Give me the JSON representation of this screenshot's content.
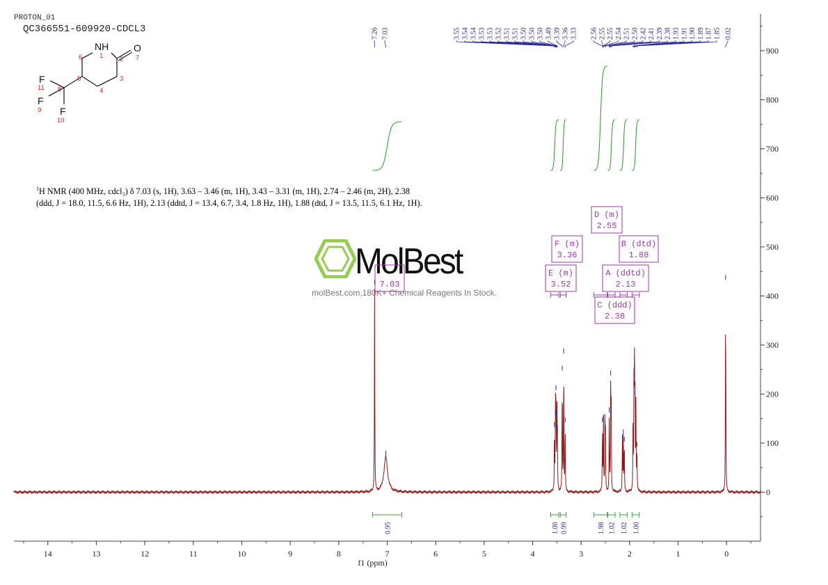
{
  "header": {
    "experiment": "PROTON_01",
    "sample": "QC366551-609920-CDCL3"
  },
  "molecule": {
    "atoms": [
      {
        "symbol": "NH",
        "number": "1"
      },
      {
        "symbol": "",
        "number": "2"
      },
      {
        "symbol": "",
        "number": "3"
      },
      {
        "symbol": "",
        "number": "4"
      },
      {
        "symbol": "",
        "number": "5"
      },
      {
        "symbol": "",
        "number": "6"
      },
      {
        "symbol": "O",
        "number": "7"
      },
      {
        "symbol": "",
        "number": "8"
      },
      {
        "symbol": "F",
        "number": "9"
      },
      {
        "symbol": "F",
        "number": "10"
      },
      {
        "symbol": "F",
        "number": "11"
      }
    ]
  },
  "description": {
    "nucleus_sup": "1",
    "text": "H NMR (400 MHz, cdcl₃) δ 7.03 (s, 1H), 3.63 – 3.46 (m, 1H), 3.43 – 3.31 (m, 1H), 2.74 – 2.46 (m, 2H), 2.38 (ddd, J = 18.0, 11.5, 6.6 Hz, 1H), 2.13 (ddtd, J = 13.4, 6.7, 3.4, 1.8 Hz, 1H), 1.88 (dtd, J = 13.5, 11.5, 6.1 Hz, 1H)."
  },
  "watermark": {
    "brand": "MolBest",
    "subtitle": "molBest.com,180K+ Chemical Reagents In Stock."
  },
  "colors": {
    "spectrum": "#8b1a1a",
    "integral": "#3aa03a",
    "multiplet": "#9b3aa8",
    "peak_label": "#2a2a9a",
    "axis": "#444444",
    "atom_number": "#d02020",
    "watermark_green": "#8cc63f"
  },
  "chart_data": {
    "type": "line",
    "xlabel": "f1 (ppm)",
    "xlim": [
      14.7,
      -0.7
    ],
    "ylim": [
      -100,
      975
    ],
    "x_ticks": [
      "14",
      "13",
      "12",
      "11",
      "10",
      "9",
      "8",
      "7",
      "6",
      "5",
      "4",
      "3",
      "2",
      "1",
      "0"
    ],
    "y_ticks": [
      "900",
      "800",
      "700",
      "600",
      "500",
      "400",
      "300",
      "200",
      "100",
      "0"
    ],
    "series": [
      {
        "values_peaks": [
          {
            "ppm": 7.26,
            "height": 420
          },
          {
            "ppm": 7.03,
            "height": 72
          },
          {
            "ppm": 3.55,
            "height": 130
          },
          {
            "ppm": 3.53,
            "height": 155
          },
          {
            "ppm": 3.52,
            "height": 205
          },
          {
            "ppm": 3.5,
            "height": 150
          },
          {
            "ppm": 3.49,
            "height": 125
          },
          {
            "ppm": 3.39,
            "height": 245
          },
          {
            "ppm": 3.36,
            "height": 280
          },
          {
            "ppm": 3.33,
            "height": 140
          },
          {
            "ppm": 2.56,
            "height": 140
          },
          {
            "ppm": 2.54,
            "height": 145
          },
          {
            "ppm": 2.51,
            "height": 135
          },
          {
            "ppm": 2.5,
            "height": 125
          },
          {
            "ppm": 2.42,
            "height": 160
          },
          {
            "ppm": 2.39,
            "height": 235
          },
          {
            "ppm": 2.38,
            "height": 155
          },
          {
            "ppm": 2.15,
            "height": 105
          },
          {
            "ppm": 2.13,
            "height": 115
          },
          {
            "ppm": 2.11,
            "height": 100
          },
          {
            "ppm": 1.93,
            "height": 120
          },
          {
            "ppm": 1.91,
            "height": 240
          },
          {
            "ppm": 1.9,
            "height": 215
          },
          {
            "ppm": 1.89,
            "height": 195
          },
          {
            "ppm": 1.87,
            "height": 175
          },
          {
            "ppm": 1.85,
            "height": 90
          },
          {
            "ppm": 0.02,
            "height": 430
          }
        ]
      }
    ],
    "peak_labels": [
      "7.26",
      "7.03",
      "3.55",
      "3.54",
      "3.54",
      "3.53",
      "3.53",
      "3.52",
      "3.51",
      "3.51",
      "3.50",
      "3.50",
      "3.50",
      "3.49",
      "3.39",
      "3.36",
      "3.33",
      "2.56",
      "2.55",
      "2.55",
      "2.54",
      "2.51",
      "2.50",
      "2.42",
      "2.41",
      "2.39",
      "2.38",
      "1.93",
      "1.91",
      "1.90",
      "1.89",
      "1.87",
      "1.85",
      "0.02"
    ],
    "multiplets": [
      {
        "id": "D",
        "kind": "(m)",
        "shift": "2.55",
        "range": [
          2.74,
          2.46
        ]
      },
      {
        "id": "F",
        "kind": "(m)",
        "shift": "3.36",
        "range": [
          3.43,
          3.31
        ]
      },
      {
        "id": "B",
        "kind": "(dtd)",
        "shift": "1.88",
        "range": [
          1.95,
          1.8
        ]
      },
      {
        "id": "E",
        "kind": "(m)",
        "shift": "3.52",
        "range": [
          3.63,
          3.46
        ]
      },
      {
        "id": "A",
        "kind": "(ddtd)",
        "shift": "2.13",
        "range": [
          2.2,
          2.05
        ]
      },
      {
        "id": "C",
        "kind": "(ddd)",
        "shift": "2.38",
        "range": [
          2.45,
          2.3
        ]
      },
      {
        "id": "",
        "kind": "",
        "shift": "7.03",
        "range": [
          7.3,
          6.7
        ]
      }
    ],
    "integrals": [
      {
        "range": [
          7.3,
          6.7
        ],
        "value": "0.95"
      },
      {
        "range": [
          3.63,
          3.46
        ],
        "value": "1.00"
      },
      {
        "range": [
          3.43,
          3.31
        ],
        "value": "0.99"
      },
      {
        "range": [
          2.74,
          2.46
        ],
        "value": "1.98"
      },
      {
        "range": [
          2.45,
          2.3
        ],
        "value": "1.02"
      },
      {
        "range": [
          2.2,
          2.05
        ],
        "value": "1.02"
      },
      {
        "range": [
          1.95,
          1.8
        ],
        "value": "1.00"
      }
    ]
  }
}
